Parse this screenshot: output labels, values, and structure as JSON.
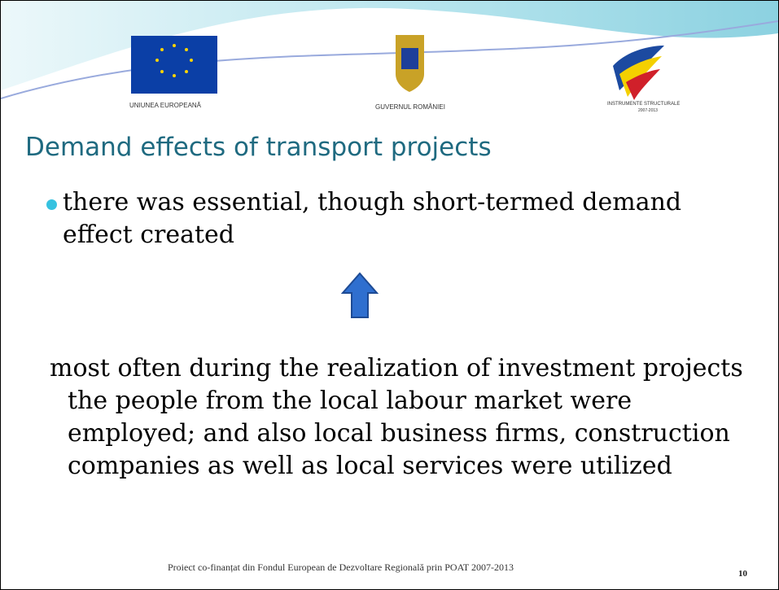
{
  "logos": [
    {
      "label": "UNIUNEA EUROPEANĂ"
    },
    {
      "label": "GUVERNUL ROMÂNIEI"
    },
    {
      "label": "INSTRUMENTE STRUCTURALE",
      "sublabel": "2007-2013"
    }
  ],
  "title": "Demand effects of transport projects",
  "bullet": "there was essential, though short-termed demand effect created",
  "body": "most often during the realization of investment projects the people from the local labour market were employed; and also local business firms, construction companies as well as local services were utilized",
  "footer": "Proiect co-finanțat din Fondul European de Dezvoltare Regională prin POAT 2007-2013",
  "page_number": "10"
}
